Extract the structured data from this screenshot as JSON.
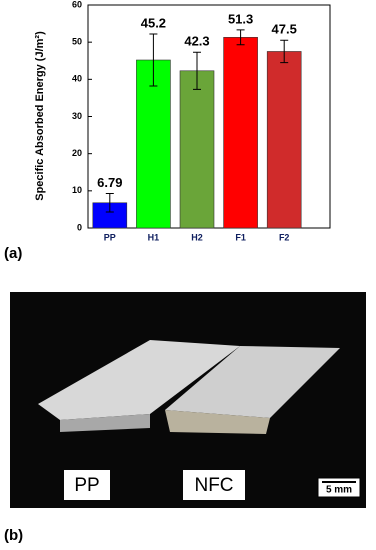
{
  "chart_data": {
    "type": "bar",
    "ylabel": "Specific Absorbed Energy (J/m²)",
    "categories": [
      "PP",
      "H1",
      "H2",
      "F1",
      "F2"
    ],
    "values": [
      6.79,
      45.2,
      42.3,
      51.3,
      47.5
    ],
    "errors": [
      2.5,
      7,
      5,
      2,
      3
    ],
    "colors": [
      "#0000ff",
      "#00ff00",
      "#6aa539",
      "#ff0000",
      "#d02b2b"
    ],
    "ylim": [
      0,
      60
    ],
    "yticks": [
      0,
      10,
      20,
      30,
      40,
      50,
      60
    ],
    "grid": false
  },
  "panel_labels": [
    "(a)",
    "(b)"
  ],
  "photo": {
    "labels": [
      "PP",
      "NFC"
    ],
    "scale_bar": "5 mm"
  }
}
